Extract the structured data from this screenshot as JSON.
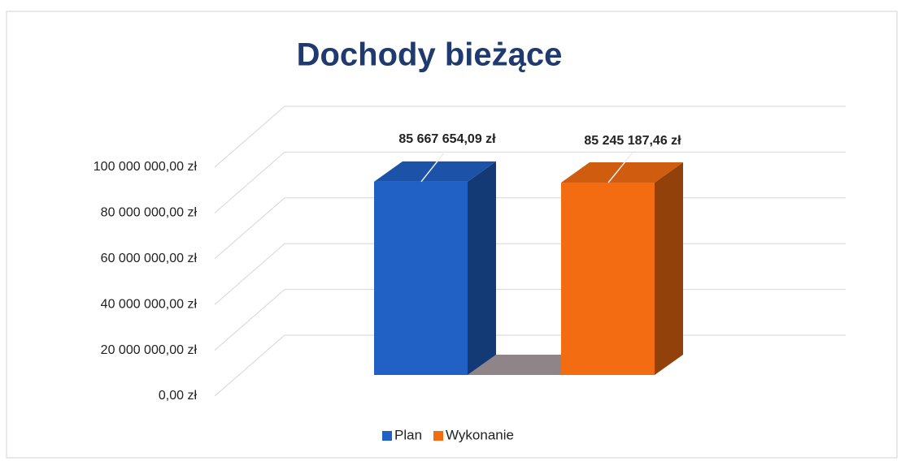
{
  "chart_data": {
    "type": "bar",
    "title": "Dochody bieżące",
    "categories": [
      null
    ],
    "series": [
      {
        "name": "Plan",
        "color": "#2160c4",
        "values": [
          85667654.09
        ],
        "value_labels": [
          "85 667 654,09 zł"
        ]
      },
      {
        "name": "Wykonanie",
        "color": "#f46c12",
        "values": [
          85245187.46
        ],
        "value_labels": [
          "85 245 187,46 zł"
        ]
      }
    ],
    "ylim": [
      0,
      100000000
    ],
    "yticks": [
      {
        "value": 0,
        "label": "0,00 zł"
      },
      {
        "value": 20000000,
        "label": "20 000 000,00 zł"
      },
      {
        "value": 40000000,
        "label": "40 000 000,00 zł"
      },
      {
        "value": 60000000,
        "label": "60 000 000,00 zł"
      },
      {
        "value": 80000000,
        "label": "80 000 000,00 zł"
      },
      {
        "value": 100000000,
        "label": "100 000 000,00 zł"
      }
    ],
    "grid": true,
    "legend": "bottom"
  }
}
